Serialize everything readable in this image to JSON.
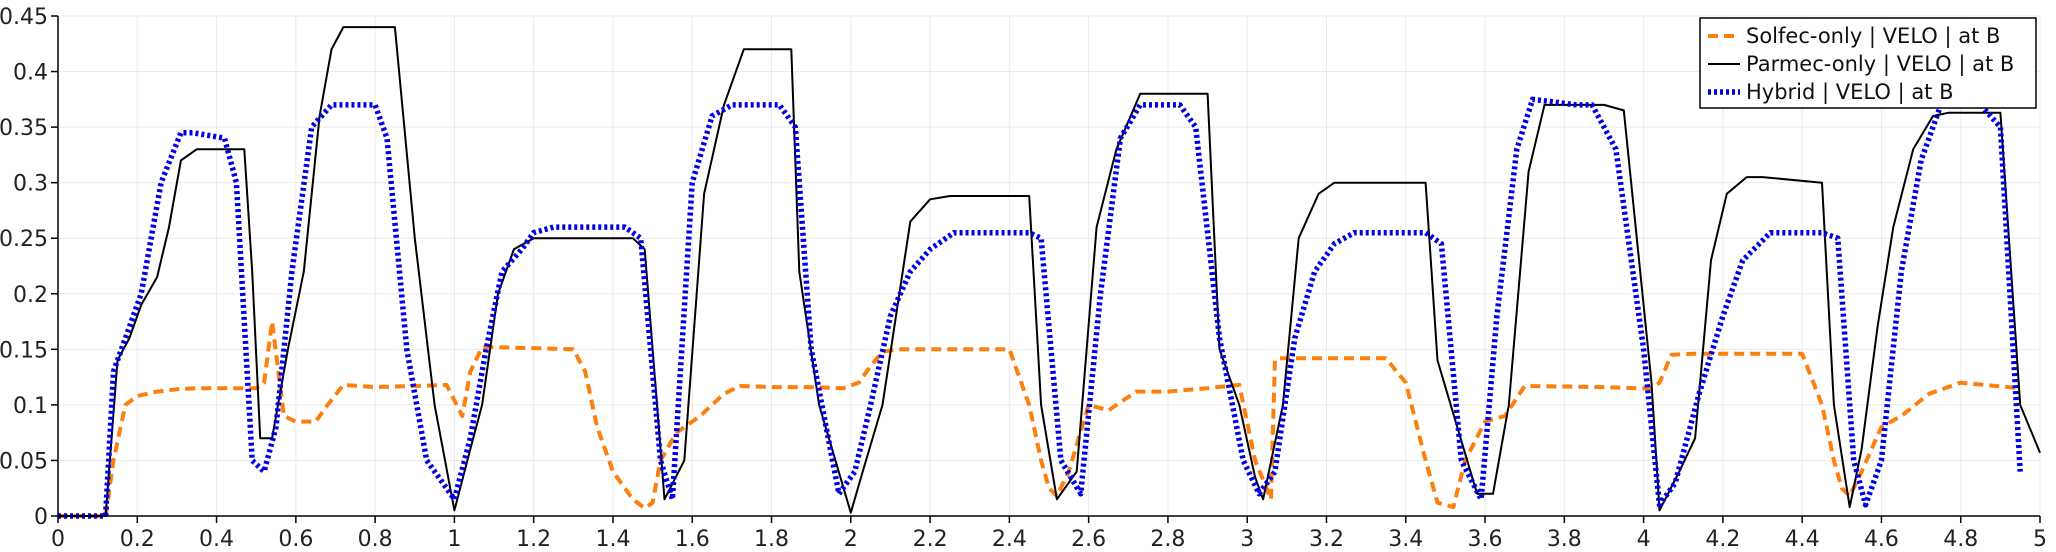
{
  "chart_data": {
    "type": "line",
    "title": "",
    "xlabel": "",
    "ylabel": "",
    "xlim": [
      0,
      5
    ],
    "ylim": [
      0,
      0.45
    ],
    "x_ticks": [
      "0",
      "0.2",
      "0.4",
      "0.6",
      "0.8",
      "1",
      "1.2",
      "1.4",
      "1.6",
      "1.8",
      "2",
      "2.2",
      "2.4",
      "2.6",
      "2.8",
      "3",
      "3.2",
      "3.4",
      "3.6",
      "3.8",
      "4",
      "4.2",
      "4.4",
      "4.6",
      "4.8",
      "5"
    ],
    "y_ticks": [
      "0",
      "0.05",
      "0.1",
      "0.15",
      "0.2",
      "0.25",
      "0.3",
      "0.35",
      "0.4",
      "0.45"
    ],
    "grid": true,
    "legend_position": "top-right",
    "series": [
      {
        "name": "Solfec-only  | VELO |  at B",
        "color": "#ff7f0e",
        "style": "dashed",
        "x": [
          0,
          0.12,
          0.14,
          0.17,
          0.2,
          0.25,
          0.3,
          0.35,
          0.45,
          0.48,
          0.5,
          0.52,
          0.54,
          0.57,
          0.6,
          0.65,
          0.68,
          0.72,
          0.8,
          0.9,
          0.98,
          1.02,
          1.04,
          1.07,
          1.1,
          1.3,
          1.33,
          1.36,
          1.4,
          1.45,
          1.48,
          1.5,
          1.52,
          1.56,
          1.62,
          1.68,
          1.72,
          1.8,
          1.9,
          1.98,
          2.02,
          2.05,
          2.08,
          2.12,
          2.4,
          2.45,
          2.48,
          2.5,
          2.52,
          2.55,
          2.6,
          2.65,
          2.72,
          2.8,
          2.9,
          2.98,
          3.02,
          3.06,
          3.07,
          3.08,
          3.1,
          3.35,
          3.4,
          3.45,
          3.48,
          3.52,
          3.55,
          3.6,
          3.65,
          3.7,
          3.9,
          3.98,
          4.02,
          4.04,
          4.07,
          4.12,
          4.4,
          4.45,
          4.48,
          4.5,
          4.52,
          4.55,
          4.6,
          4.65,
          4.72,
          4.8,
          4.95
        ],
        "y": [
          0,
          0,
          0.05,
          0.1,
          0.108,
          0.112,
          0.114,
          0.115,
          0.115,
          0.115,
          0.115,
          0.12,
          0.175,
          0.09,
          0.085,
          0.085,
          0.1,
          0.118,
          0.116,
          0.117,
          0.118,
          0.09,
          0.13,
          0.152,
          0.152,
          0.15,
          0.13,
          0.08,
          0.04,
          0.015,
          0.007,
          0.012,
          0.05,
          0.075,
          0.09,
          0.11,
          0.117,
          0.116,
          0.116,
          0.115,
          0.12,
          0.135,
          0.148,
          0.15,
          0.15,
          0.1,
          0.05,
          0.025,
          0.018,
          0.04,
          0.1,
          0.095,
          0.112,
          0.112,
          0.115,
          0.118,
          0.05,
          0.015,
          0.14,
          0.142,
          0.142,
          0.142,
          0.12,
          0.05,
          0.012,
          0.008,
          0.05,
          0.085,
          0.09,
          0.117,
          0.116,
          0.115,
          0.115,
          0.12,
          0.145,
          0.146,
          0.146,
          0.1,
          0.05,
          0.025,
          0.018,
          0.04,
          0.08,
          0.09,
          0.11,
          0.12,
          0.115
        ]
      },
      {
        "name": "Parmec-only  | VELO |  at B",
        "color": "#000000",
        "style": "solid",
        "x": [
          0,
          0.12,
          0.15,
          0.18,
          0.21,
          0.25,
          0.28,
          0.31,
          0.35,
          0.38,
          0.42,
          0.47,
          0.49,
          0.51,
          0.54,
          0.58,
          0.62,
          0.66,
          0.69,
          0.72,
          0.75,
          0.85,
          0.9,
          0.95,
          1.0,
          1.04,
          1.07,
          1.11,
          1.15,
          1.2,
          1.45,
          1.48,
          1.53,
          1.58,
          1.63,
          1.68,
          1.73,
          1.75,
          1.85,
          1.87,
          1.92,
          2.0,
          2.03,
          2.08,
          2.15,
          2.2,
          2.25,
          2.38,
          2.45,
          2.48,
          2.52,
          2.57,
          2.62,
          2.67,
          2.73,
          2.76,
          2.9,
          2.93,
          2.98,
          3.02,
          3.04,
          3.09,
          3.13,
          3.18,
          3.22,
          3.26,
          3.45,
          3.48,
          3.53,
          3.58,
          3.62,
          3.66,
          3.71,
          3.75,
          3.9,
          3.95,
          4.02,
          4.04,
          4.09,
          4.13,
          4.17,
          4.21,
          4.26,
          4.3,
          4.45,
          4.48,
          4.52,
          4.55,
          4.59,
          4.63,
          4.68,
          4.73,
          4.77,
          4.9,
          4.95,
          5.0
        ],
        "y": [
          0,
          0,
          0.14,
          0.16,
          0.19,
          0.215,
          0.26,
          0.32,
          0.33,
          0.33,
          0.33,
          0.33,
          0.22,
          0.07,
          0.07,
          0.15,
          0.22,
          0.36,
          0.42,
          0.44,
          0.44,
          0.44,
          0.25,
          0.1,
          0.005,
          0.06,
          0.1,
          0.2,
          0.24,
          0.25,
          0.25,
          0.24,
          0.015,
          0.05,
          0.29,
          0.37,
          0.42,
          0.42,
          0.42,
          0.22,
          0.1,
          0.003,
          0.04,
          0.1,
          0.265,
          0.285,
          0.288,
          0.288,
          0.288,
          0.1,
          0.015,
          0.04,
          0.26,
          0.33,
          0.38,
          0.38,
          0.38,
          0.15,
          0.1,
          0.035,
          0.015,
          0.1,
          0.25,
          0.29,
          0.3,
          0.3,
          0.3,
          0.14,
          0.08,
          0.02,
          0.02,
          0.1,
          0.31,
          0.37,
          0.37,
          0.365,
          0.12,
          0.005,
          0.04,
          0.07,
          0.23,
          0.29,
          0.305,
          0.305,
          0.3,
          0.1,
          0.008,
          0.06,
          0.17,
          0.26,
          0.33,
          0.36,
          0.363,
          0.363,
          0.1,
          0.057
        ]
      },
      {
        "name": "Hybrid  | VELO |  at B",
        "color": "#0000e6",
        "style": "dotted",
        "x": [
          0,
          0.12,
          0.14,
          0.17,
          0.21,
          0.26,
          0.31,
          0.34,
          0.42,
          0.45,
          0.49,
          0.52,
          0.55,
          0.59,
          0.64,
          0.69,
          0.73,
          0.8,
          0.83,
          0.88,
          0.93,
          1.0,
          1.04,
          1.08,
          1.12,
          1.17,
          1.2,
          1.25,
          1.43,
          1.47,
          1.52,
          1.55,
          1.6,
          1.65,
          1.7,
          1.74,
          1.82,
          1.86,
          1.9,
          1.97,
          2.01,
          2.05,
          2.1,
          2.15,
          2.2,
          2.26,
          2.32,
          2.45,
          2.48,
          2.53,
          2.58,
          2.63,
          2.68,
          2.73,
          2.83,
          2.87,
          2.93,
          2.99,
          3.03,
          3.07,
          3.12,
          3.17,
          3.22,
          3.27,
          3.45,
          3.49,
          3.54,
          3.59,
          3.63,
          3.68,
          3.72,
          3.83,
          3.87,
          3.93,
          4.0,
          4.04,
          4.08,
          4.14,
          4.2,
          4.25,
          4.32,
          4.45,
          4.49,
          4.53,
          4.56,
          4.6,
          4.65,
          4.7,
          4.75,
          4.8,
          4.85,
          4.9,
          4.95
        ],
        "y": [
          0,
          0,
          0.13,
          0.16,
          0.2,
          0.3,
          0.345,
          0.345,
          0.34,
          0.3,
          0.05,
          0.04,
          0.08,
          0.22,
          0.35,
          0.37,
          0.37,
          0.37,
          0.34,
          0.15,
          0.05,
          0.015,
          0.07,
          0.15,
          0.22,
          0.24,
          0.255,
          0.26,
          0.26,
          0.25,
          0.05,
          0.015,
          0.3,
          0.36,
          0.37,
          0.37,
          0.37,
          0.35,
          0.15,
          0.02,
          0.04,
          0.1,
          0.18,
          0.22,
          0.24,
          0.255,
          0.255,
          0.255,
          0.25,
          0.05,
          0.02,
          0.2,
          0.34,
          0.37,
          0.37,
          0.35,
          0.16,
          0.05,
          0.02,
          0.04,
          0.16,
          0.22,
          0.245,
          0.255,
          0.255,
          0.245,
          0.05,
          0.015,
          0.18,
          0.33,
          0.375,
          0.37,
          0.37,
          0.33,
          0.15,
          0.01,
          0.03,
          0.11,
          0.18,
          0.23,
          0.255,
          0.255,
          0.25,
          0.05,
          0.01,
          0.05,
          0.22,
          0.32,
          0.37,
          0.37,
          0.37,
          0.35,
          0.04
        ]
      }
    ]
  }
}
